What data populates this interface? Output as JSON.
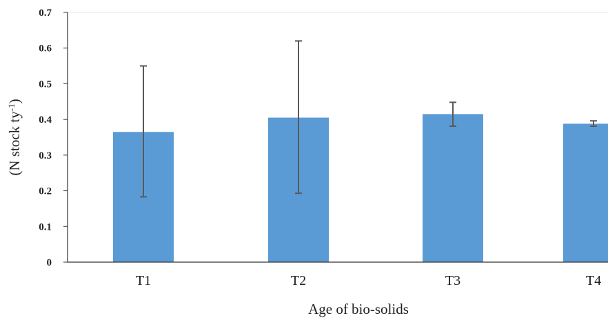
{
  "chart_data": {
    "type": "bar",
    "categories": [
      "T1",
      "T2",
      "T3",
      "T4"
    ],
    "values": [
      0.365,
      0.405,
      0.415,
      0.388
    ],
    "error_low": [
      0.183,
      0.193,
      0.381,
      0.381
    ],
    "error_high": [
      0.55,
      0.62,
      0.448,
      0.396
    ],
    "ylim": [
      0,
      0.7
    ],
    "yticks": [
      "0",
      "0.1",
      "0.2",
      "0.3",
      "0.4",
      "0.5",
      "0.6",
      "0.7"
    ],
    "ytick_values": [
      0,
      0.1,
      0.2,
      0.3,
      0.4,
      0.5,
      0.6,
      0.7
    ],
    "xlabel": "Age of bio-solids",
    "ylabel_main": "(N stock ty",
    "ylabel_sup": "-1",
    "ylabel_tail": ")",
    "bar_color": "#5b9bd5",
    "error_color": "#595959",
    "grid": false
  }
}
